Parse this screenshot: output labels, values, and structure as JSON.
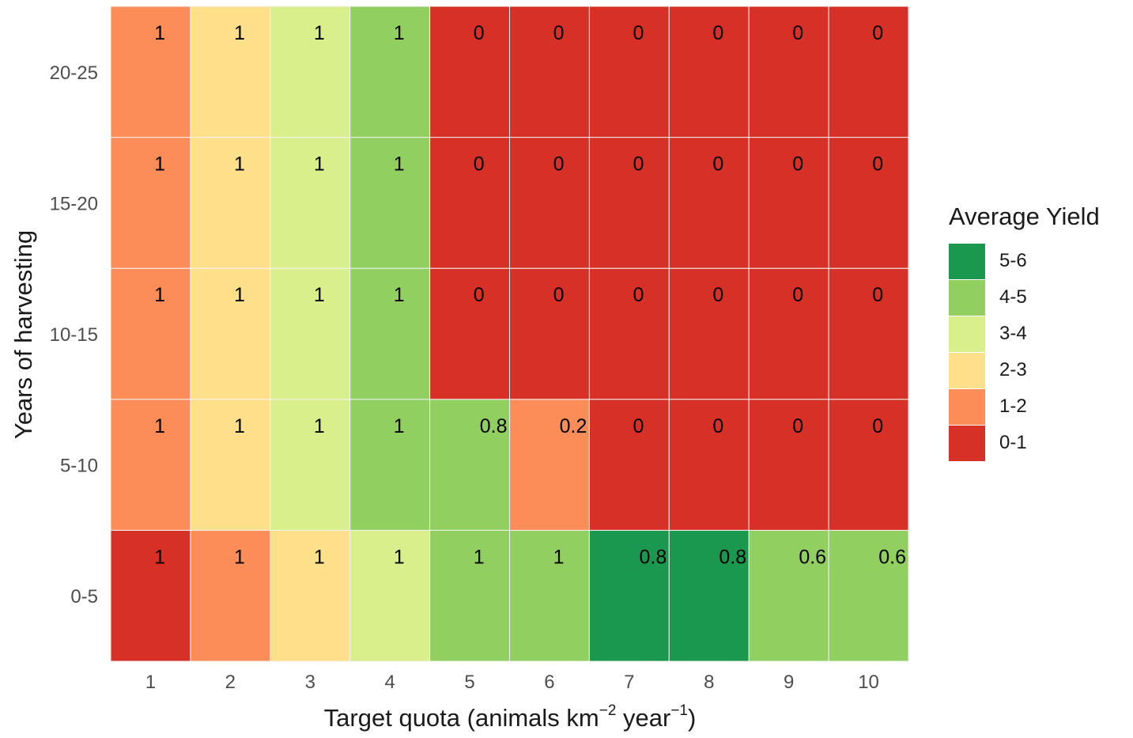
{
  "chart_data": {
    "type": "heatmap",
    "title": "",
    "xlabel": {
      "prefix": "Target quota (animals km",
      "sup1": "−2",
      "middle": " year",
      "sup2": "−1",
      "suffix": ")"
    },
    "ylabel": "Years of harvesting",
    "x_categories": [
      "1",
      "2",
      "3",
      "4",
      "5",
      "6",
      "7",
      "8",
      "9",
      "10"
    ],
    "y_categories": [
      "0-5",
      "5-10",
      "10-15",
      "15-20",
      "20-25"
    ],
    "legend": {
      "title": "Average Yield",
      "placement": "right",
      "entries": [
        {
          "label": "5-6",
          "color": "#1a9850"
        },
        {
          "label": "4-5",
          "color": "#91cf60"
        },
        {
          "label": "3-4",
          "color": "#d9ef8b"
        },
        {
          "label": "2-3",
          "color": "#fee08b"
        },
        {
          "label": "1-2",
          "color": "#fc8d59"
        },
        {
          "label": "0-1",
          "color": "#d73027"
        }
      ]
    },
    "rows": [
      {
        "y": "0-5",
        "yield_class": [
          "0-1",
          "1-2",
          "2-3",
          "3-4",
          "4-5",
          "4-5",
          "5-6",
          "5-6",
          "4-5",
          "4-5"
        ],
        "labels": [
          "1",
          "1",
          "1",
          "1",
          "1",
          "1",
          "0.8",
          "0.8",
          "0.6",
          "0.6"
        ]
      },
      {
        "y": "5-10",
        "yield_class": [
          "1-2",
          "2-3",
          "3-4",
          "4-5",
          "4-5",
          "1-2",
          "0-1",
          "0-1",
          "0-1",
          "0-1"
        ],
        "labels": [
          "1",
          "1",
          "1",
          "1",
          "0.8",
          "0.2",
          "0",
          "0",
          "0",
          "0"
        ]
      },
      {
        "y": "10-15",
        "yield_class": [
          "1-2",
          "2-3",
          "3-4",
          "4-5",
          "0-1",
          "0-1",
          "0-1",
          "0-1",
          "0-1",
          "0-1"
        ],
        "labels": [
          "1",
          "1",
          "1",
          "1",
          "0",
          "0",
          "0",
          "0",
          "0",
          "0"
        ]
      },
      {
        "y": "15-20",
        "yield_class": [
          "1-2",
          "2-3",
          "3-4",
          "4-5",
          "0-1",
          "0-1",
          "0-1",
          "0-1",
          "0-1",
          "0-1"
        ],
        "labels": [
          "1",
          "1",
          "1",
          "1",
          "0",
          "0",
          "0",
          "0",
          "0",
          "0"
        ]
      },
      {
        "y": "20-25",
        "yield_class": [
          "1-2",
          "2-3",
          "3-4",
          "4-5",
          "0-1",
          "0-1",
          "0-1",
          "0-1",
          "0-1",
          "0-1"
        ],
        "labels": [
          "1",
          "1",
          "1",
          "1",
          "0",
          "0",
          "0",
          "0",
          "0",
          "0"
        ]
      }
    ],
    "grid": false
  }
}
